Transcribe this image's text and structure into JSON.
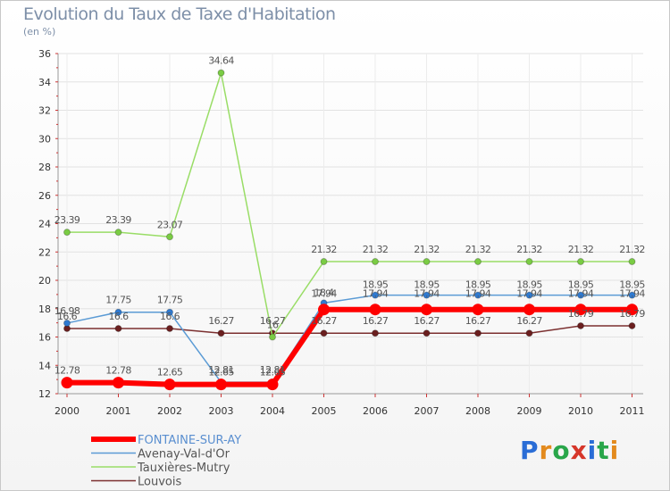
{
  "header": {
    "title": "Evolution du Taux de Taxe d'Habitation",
    "unit": "(en %)"
  },
  "logo": "Proxiti",
  "chart_data": {
    "type": "line",
    "title": "Evolution du Taux de Taxe d'Habitation",
    "ylabel": "(en %)",
    "xlabel": "",
    "categories": [
      "2000",
      "2001",
      "2002",
      "2003",
      "2004",
      "2005",
      "2006",
      "2007",
      "2008",
      "2009",
      "2010",
      "2011"
    ],
    "ylim": [
      12,
      36
    ],
    "yticks": [
      12,
      14,
      16,
      18,
      20,
      22,
      24,
      26,
      28,
      30,
      32,
      34,
      36
    ],
    "grid": true,
    "legend_position": "bottom-left",
    "series": [
      {
        "name": "FONTAINE-SUR-AY",
        "color": "#ff0000",
        "values": [
          12.78,
          12.78,
          12.65,
          12.65,
          12.65,
          17.94,
          17.94,
          17.94,
          17.94,
          17.94,
          17.94,
          17.94
        ],
        "labels": [
          "12.78",
          "12.78",
          "12.65",
          "12.65",
          "12.65",
          "17.94",
          "17.94",
          "17.94",
          "17.94",
          "17.94",
          "17.94",
          "17.94"
        ]
      },
      {
        "name": "Avenay-Val-d'Or",
        "color": "#5b9bd5",
        "values": [
          16.98,
          17.75,
          17.75,
          12.81,
          12.81,
          18.4,
          18.95,
          18.95,
          18.95,
          18.95,
          18.95,
          18.95
        ],
        "labels": [
          "16.98",
          "17.75",
          "17.75",
          "12.81",
          "12.81",
          "18.4",
          "18.95",
          "18.95",
          "18.95",
          "18.95",
          "18.95",
          "18.95"
        ]
      },
      {
        "name": "Tauxières-Mutry",
        "color": "#99dd66",
        "values": [
          23.39,
          23.39,
          23.07,
          34.64,
          16.0,
          21.32,
          21.32,
          21.32,
          21.32,
          21.32,
          21.32,
          21.32
        ],
        "labels": [
          "23.39",
          "23.39",
          "23.07",
          "34.64",
          "16",
          "21.32",
          "21.32",
          "21.32",
          "21.32",
          "21.32",
          "21.32",
          "21.32"
        ]
      },
      {
        "name": "Louvois",
        "color": "#7b2f2f",
        "values": [
          16.6,
          16.6,
          16.6,
          16.27,
          16.27,
          16.27,
          16.27,
          16.27,
          16.27,
          16.27,
          16.79,
          16.79
        ],
        "labels": [
          "16.6",
          "16.6",
          "16.6",
          "16.27",
          "16.27",
          "16.27",
          "16.27",
          "16.27",
          "16.27",
          "16.27",
          "16.79",
          "16.79"
        ]
      }
    ]
  }
}
